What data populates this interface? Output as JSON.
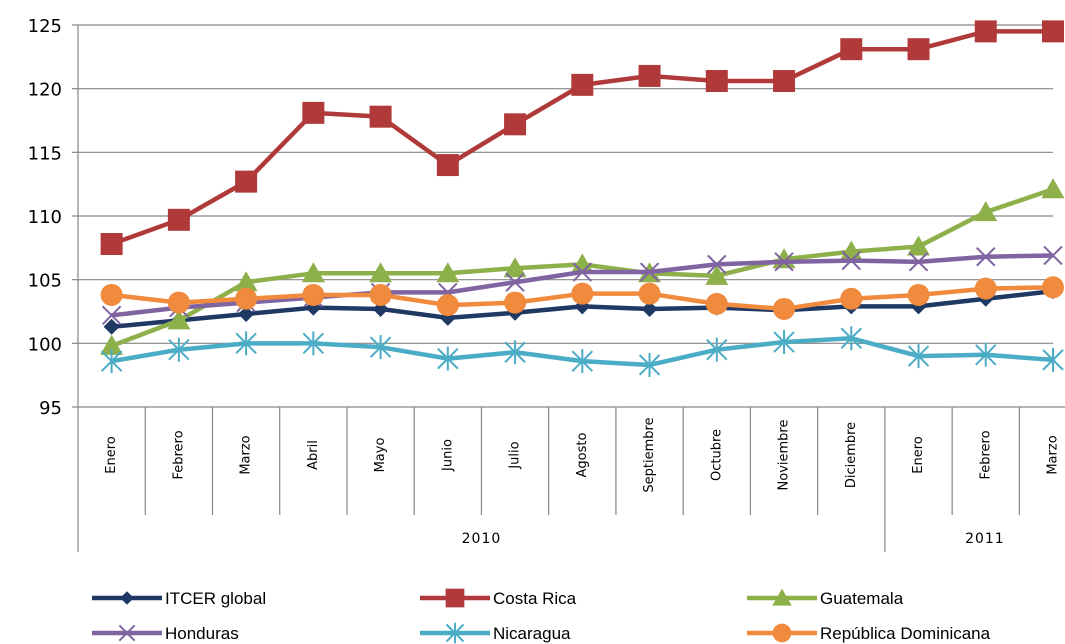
{
  "chart_data": {
    "type": "line",
    "title": "",
    "xlabel": "",
    "ylabel": "",
    "ylim": [
      95,
      125
    ],
    "yticks": [
      95,
      100,
      105,
      110,
      115,
      120,
      125
    ],
    "grid": true,
    "legend_position": "bottom",
    "categories": [
      "Enero",
      "Febrero",
      "Marzo",
      "Abril",
      "Mayo",
      "Junio",
      "Julio",
      "Agosto",
      "Septiembre",
      "Octubre",
      "Noviembre",
      "Diciembre",
      "Enero",
      "Febrero",
      "Marzo"
    ],
    "groups": [
      {
        "label": "2010",
        "count": 12
      },
      {
        "label": "2011",
        "count": 3
      }
    ],
    "series": [
      {
        "name": "ITCER global",
        "marker": "diamond",
        "color": "#1F3864",
        "values": [
          101.3,
          101.8,
          102.3,
          102.8,
          102.7,
          102.0,
          102.4,
          102.9,
          102.7,
          102.8,
          102.6,
          102.9,
          102.9,
          103.5,
          104.1
        ]
      },
      {
        "name": "Costa Rica",
        "marker": "square",
        "color": "#B03A3A",
        "values": [
          107.8,
          109.7,
          112.7,
          118.1,
          117.8,
          114.0,
          117.2,
          120.3,
          121.0,
          120.6,
          120.6,
          123.1,
          123.1,
          124.5,
          124.5
        ]
      },
      {
        "name": "Guatemala",
        "marker": "triangle",
        "color": "#8DB04A",
        "values": [
          99.8,
          101.8,
          104.8,
          105.5,
          105.5,
          105.5,
          105.9,
          106.2,
          105.5,
          105.3,
          106.6,
          107.2,
          107.6,
          110.3,
          112.1
        ]
      },
      {
        "name": "Honduras",
        "marker": "x",
        "color": "#8064A2",
        "values": [
          102.2,
          102.8,
          103.2,
          103.6,
          104.0,
          104.0,
          104.8,
          105.6,
          105.6,
          106.2,
          106.4,
          106.5,
          106.4,
          106.8,
          106.9
        ]
      },
      {
        "name": "Nicaragua",
        "marker": "star",
        "color": "#4BACC6",
        "values": [
          98.6,
          99.5,
          100.0,
          100.0,
          99.7,
          98.8,
          99.3,
          98.6,
          98.3,
          99.5,
          100.1,
          100.4,
          99.0,
          99.1,
          98.7
        ]
      },
      {
        "name": "República Dominicana",
        "marker": "circle",
        "color": "#F08A3C",
        "values": [
          103.8,
          103.2,
          103.5,
          103.8,
          103.8,
          103.0,
          103.2,
          103.9,
          103.9,
          103.1,
          102.7,
          103.5,
          103.8,
          104.3,
          104.4
        ]
      }
    ]
  }
}
